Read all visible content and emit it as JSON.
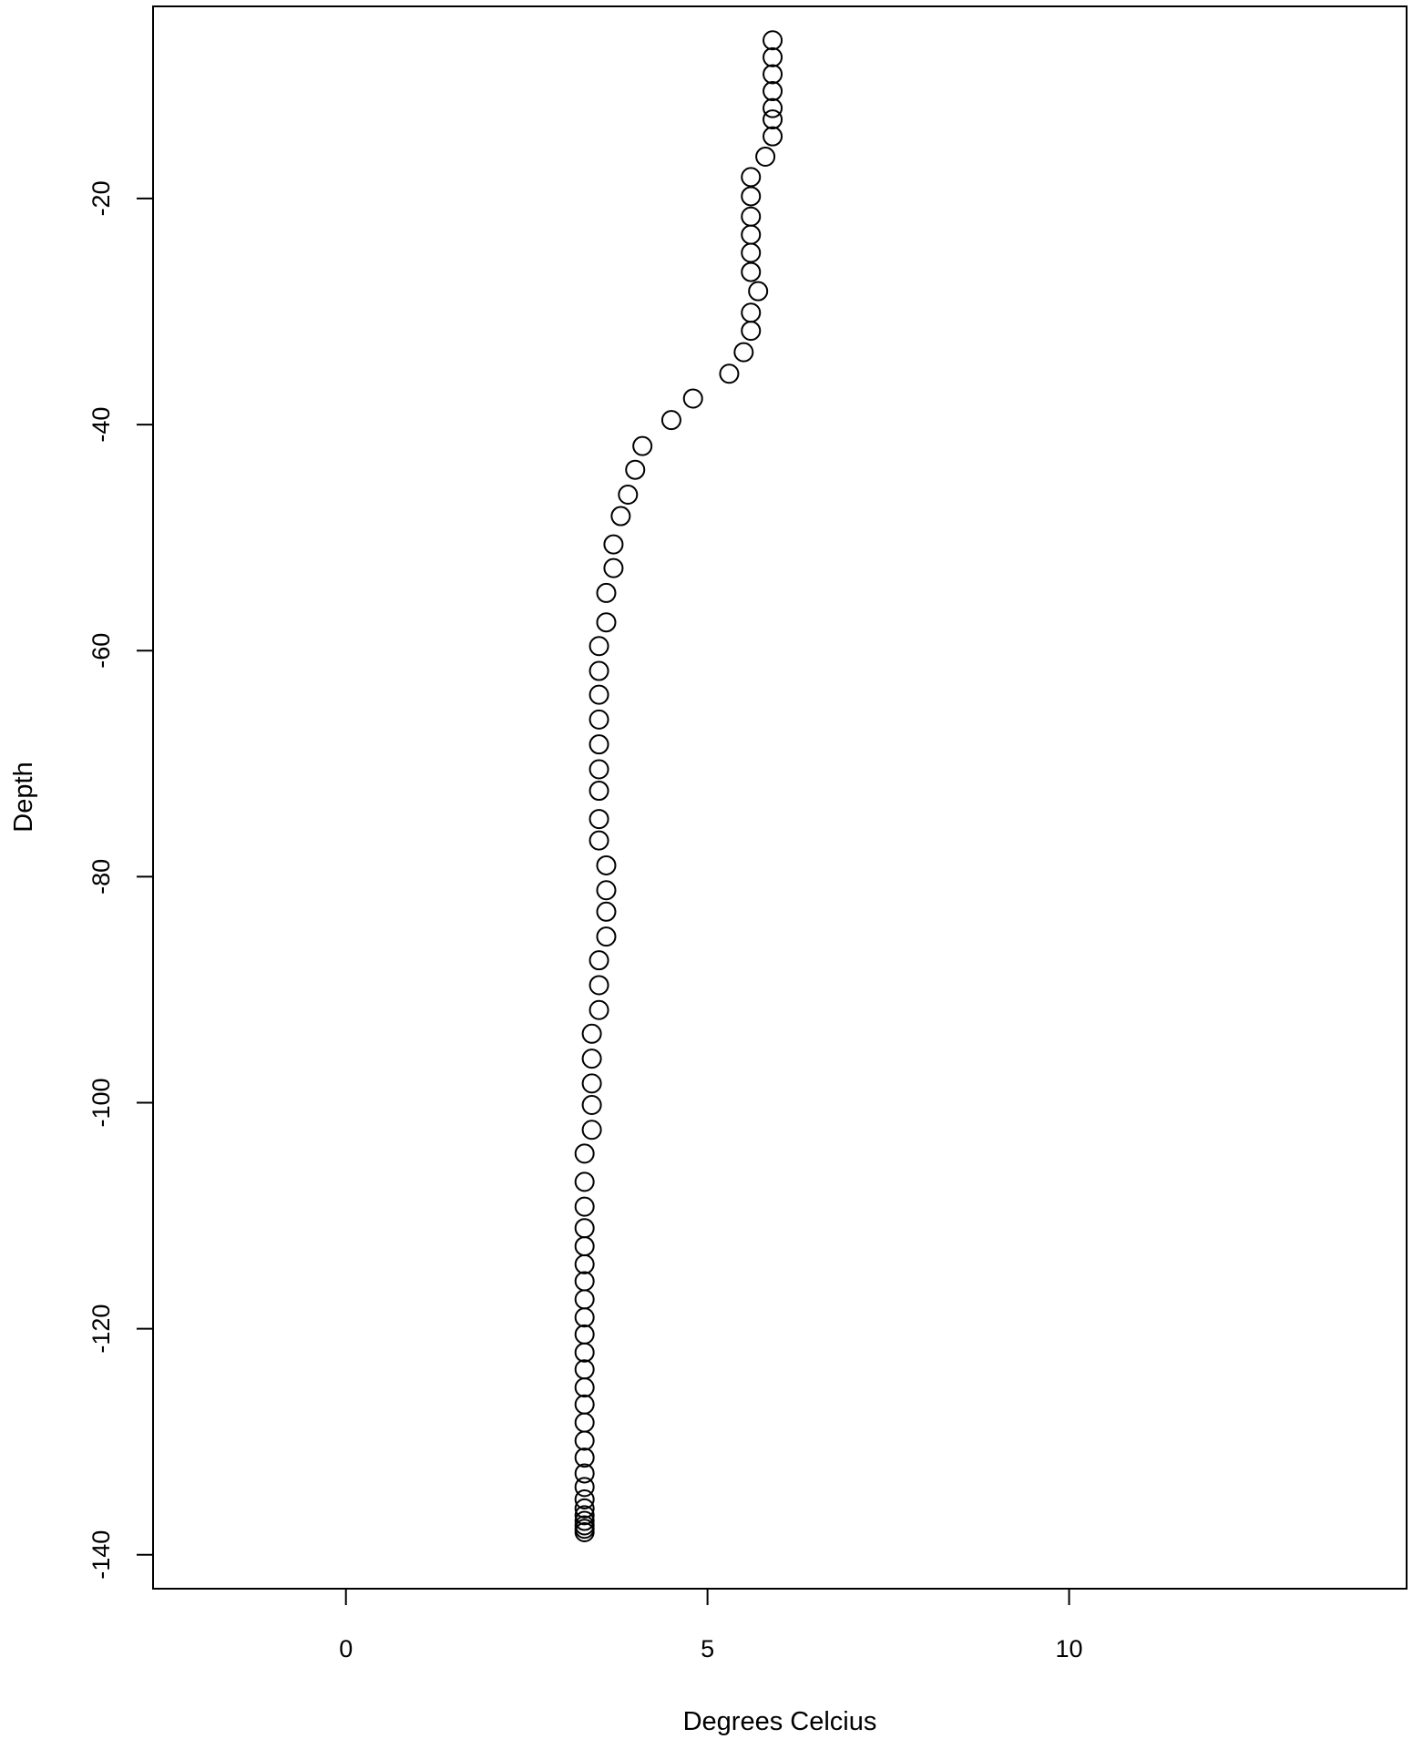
{
  "chart_data": {
    "type": "scatter",
    "title": "",
    "xlabel": "Degrees Celcius",
    "ylabel": "Depth",
    "xlim": [
      -2.667,
      14.667
    ],
    "ylim": [
      -143,
      -3
    ],
    "x_ticks": [
      0,
      5,
      10
    ],
    "y_ticks": [
      -140,
      -120,
      -100,
      -80,
      -60,
      -40,
      -20
    ],
    "x_tick_labels": [
      "0",
      "5",
      "10"
    ],
    "y_tick_labels": [
      "-140",
      "-120",
      "-100",
      "-80",
      "-60",
      "-40",
      "-20"
    ],
    "grid": false,
    "marker": "open-circle",
    "series": [
      {
        "x": [
          5.9,
          5.9,
          5.9,
          5.9,
          5.9,
          5.9,
          5.9,
          5.8,
          5.6,
          5.6,
          5.6,
          5.6,
          5.6,
          5.6,
          5.7,
          5.6,
          5.6,
          5.5,
          5.3,
          4.8,
          4.5,
          4.1,
          4.0,
          3.9,
          3.8,
          3.7,
          3.7,
          3.6,
          3.6,
          3.5,
          3.5,
          3.5,
          3.5,
          3.5,
          3.5,
          3.5,
          3.5,
          3.5,
          3.6,
          3.6,
          3.6,
          3.6,
          3.5,
          3.5,
          3.5,
          3.4,
          3.4,
          3.4,
          3.4,
          3.4,
          3.3,
          3.3,
          3.3,
          3.3,
          3.3,
          3.3,
          3.3,
          3.3,
          3.3,
          3.3,
          3.3,
          3.3,
          3.3,
          3.3,
          3.3,
          3.3,
          3.3,
          3.3,
          3.3,
          3.3,
          3.3,
          3.3,
          3.3,
          3.3,
          3.3,
          3.3
        ],
        "y": [
          -6,
          -7.5,
          -9,
          -10.5,
          -12,
          -13,
          -14.5,
          -16.3,
          -18.1,
          -19.8,
          -21.6,
          -23.2,
          -24.8,
          -26.5,
          -28.2,
          -30.1,
          -31.7,
          -33.6,
          -35.5,
          -37.7,
          -39.6,
          -41.9,
          -44,
          -46.2,
          -48.1,
          -50.6,
          -52.7,
          -54.9,
          -57.5,
          -59.6,
          -61.8,
          -63.9,
          -66.1,
          -68.3,
          -70.5,
          -72.4,
          -74.9,
          -76.8,
          -79,
          -81.2,
          -83.1,
          -85.3,
          -87.4,
          -89.6,
          -91.8,
          -93.9,
          -96.1,
          -98.3,
          -100.2,
          -102.4,
          -104.5,
          -107,
          -109.2,
          -111.1,
          -112.7,
          -114.3,
          -115.8,
          -117.4,
          -119,
          -120.5,
          -122.1,
          -123.6,
          -125.2,
          -126.7,
          -128.3,
          -129.9,
          -131.4,
          -132.8,
          -134,
          -135.1,
          -135.9,
          -136.5,
          -137,
          -137.4,
          -137.7,
          -138
        ]
      }
    ]
  }
}
